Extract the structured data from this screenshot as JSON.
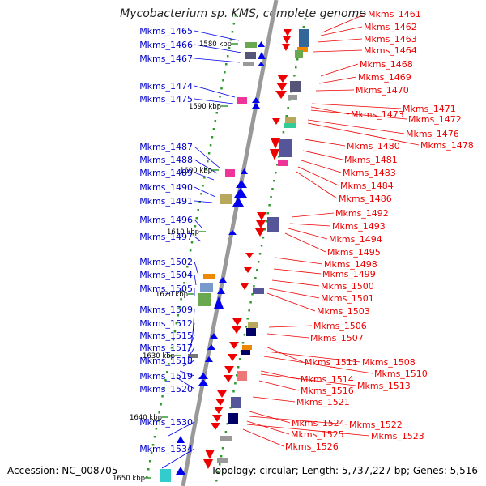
{
  "title": "Mycobacterium sp. KMS, complete genome",
  "accession": "Accession: NC_008705",
  "summary": "Topology: circular; Length: 5,737,227 bp; Genes: 5,516",
  "colors": {
    "forward": "#0000ee",
    "reverse": "#ee0000",
    "axis": "#999999"
  },
  "kbp_marks": [
    "1580 kbp",
    "1590 kbp",
    "1600 kbp",
    "1610 kbp",
    "1620 kbp",
    "1630 kbp",
    "1640 kbp",
    "1650 kbp"
  ],
  "left_genes": [
    "Mkms_1465",
    "Mkms_1466",
    "Mkms_1467",
    "Mkms_1474",
    "Mkms_1475",
    "Mkms_1487",
    "Mkms_1488",
    "Mkms_1489",
    "Mkms_1490",
    "Mkms_1491",
    "Mkms_1496",
    "Mkms_1497",
    "Mkms_1502",
    "Mkms_1504",
    "Mkms_1505",
    "Mkms_1509",
    "Mkms_1512",
    "Mkms_1515",
    "Mkms_1517",
    "Mkms_1518",
    "Mkms_1519",
    "Mkms_1520",
    "Mkms_1530",
    "Mkms_1534"
  ],
  "right_genes": [
    "Mkms_1461",
    "Mkms_1462",
    "Mkms_1463",
    "Mkms_1464",
    "Mkms_1468",
    "Mkms_1469",
    "Mkms_1470",
    "Mkms_1471",
    "Mkms_1473",
    "Mkms_1472",
    "Mkms_1476",
    "Mkms_1478",
    "Mkms_1480",
    "Mkms_1481",
    "Mkms_1483",
    "Mkms_1484",
    "Mkms_1486",
    "Mkms_1492",
    "Mkms_1493",
    "Mkms_1494",
    "Mkms_1495",
    "Mkms_1498",
    "Mkms_1499",
    "Mkms_1500",
    "Mkms_1501",
    "Mkms_1503",
    "Mkms_1506",
    "Mkms_1507",
    "Mkms_1511",
    "Mkms_1508",
    "Mkms_1510",
    "Mkms_1514",
    "Mkms_1513",
    "Mkms_1516",
    "Mkms_1521",
    "Mkms_1524",
    "Mkms_1522",
    "Mkms_1525",
    "Mkms_1523",
    "Mkms_1526"
  ]
}
